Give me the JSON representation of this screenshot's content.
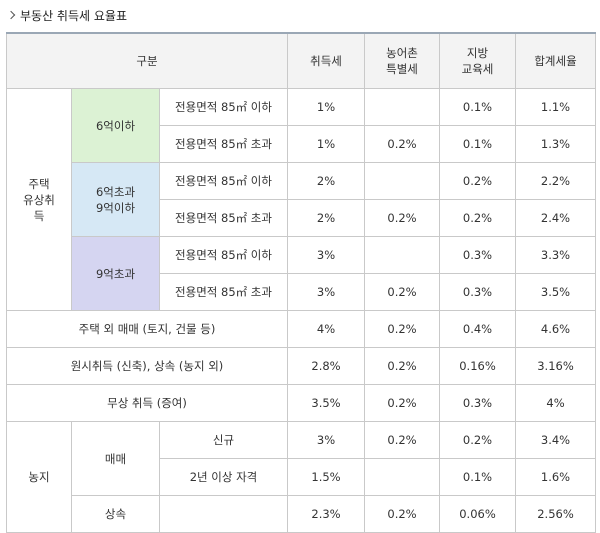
{
  "title": "부동산 취득세 요율표",
  "header": {
    "category": "구분",
    "acq_tax": "취득세",
    "rural_tax_l1": "농어촌",
    "rural_tax_l2": "특별세",
    "local_edu_l1": "지방",
    "local_edu_l2": "교육세",
    "total_rate": "합계세율"
  },
  "housing": {
    "label_l1": "주택",
    "label_l2": "유상취",
    "label_l3": "득",
    "groups": [
      {
        "price_l1": "6억이하",
        "price_l2": "",
        "rows": [
          {
            "area": "전용면적 85㎡ 이하",
            "acq": "1%",
            "rural": "",
            "edu": "0.1%",
            "total": "1.1%"
          },
          {
            "area": "전용면적 85㎡ 초과",
            "acq": "1%",
            "rural": "0.2%",
            "edu": "0.1%",
            "total": "1.3%"
          }
        ]
      },
      {
        "price_l1": "6억초과",
        "price_l2": "9억이하",
        "rows": [
          {
            "area": "전용면적 85㎡ 이하",
            "acq": "2%",
            "rural": "",
            "edu": "0.2%",
            "total": "2.2%"
          },
          {
            "area": "전용면적 85㎡ 초과",
            "acq": "2%",
            "rural": "0.2%",
            "edu": "0.2%",
            "total": "2.4%"
          }
        ]
      },
      {
        "price_l1": "9억초과",
        "price_l2": "",
        "rows": [
          {
            "area": "전용면적 85㎡ 이하",
            "acq": "3%",
            "rural": "",
            "edu": "0.3%",
            "total": "3.3%"
          },
          {
            "area": "전용면적 85㎡ 초과",
            "acq": "3%",
            "rural": "0.2%",
            "edu": "0.3%",
            "total": "3.5%"
          }
        ]
      }
    ]
  },
  "other_rows": [
    {
      "label": "주택 외 매매 (토지, 건물 등)",
      "acq": "4%",
      "rural": "0.2%",
      "edu": "0.4%",
      "total": "4.6%"
    },
    {
      "label": "원시취득 (신축), 상속 (농지 외)",
      "acq": "2.8%",
      "rural": "0.2%",
      "edu": "0.16%",
      "total": "3.16%"
    },
    {
      "label": "무상 취득 (증여)",
      "acq": "3.5%",
      "rural": "0.2%",
      "edu": "0.3%",
      "total": "4%"
    }
  ],
  "farmland": {
    "label": "농지",
    "sale_label": "매매",
    "rows": [
      {
        "sub": "신규",
        "acq": "3%",
        "rural": "0.2%",
        "edu": "0.2%",
        "total": "3.4%"
      },
      {
        "sub": "2년 이상 자격",
        "acq": "1.5%",
        "rural": "",
        "edu": "0.1%",
        "total": "1.6%"
      }
    ],
    "inherit": {
      "label": "상속",
      "acq": "2.3%",
      "rural": "0.2%",
      "edu": "0.06%",
      "total": "2.56%"
    }
  }
}
